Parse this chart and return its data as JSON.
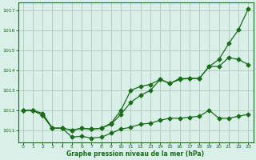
{
  "background_color": "#d8f0e8",
  "grid_color": "#b0c8b8",
  "line_color": "#1a6b1a",
  "xlabel": "Graphe pression niveau de la mer (hPa)",
  "ylim": [
    1010.4,
    1017.4
  ],
  "xlim": [
    -0.5,
    23.5
  ],
  "yticks": [
    1011,
    1012,
    1013,
    1014,
    1015,
    1016,
    1017
  ],
  "xticks": [
    0,
    1,
    2,
    3,
    4,
    5,
    6,
    7,
    8,
    9,
    10,
    11,
    12,
    13,
    14,
    15,
    16,
    17,
    18,
    19,
    20,
    21,
    22,
    23
  ],
  "series1_x": [
    0,
    1,
    2,
    3,
    4,
    5,
    6,
    7,
    8,
    9,
    10,
    11,
    12,
    13,
    14,
    15,
    16,
    17,
    18,
    19,
    20,
    21,
    22,
    23
  ],
  "series1_y": [
    1012.0,
    1012.0,
    1011.85,
    1011.1,
    1011.1,
    1010.65,
    1010.7,
    1010.6,
    1010.65,
    1010.85,
    1011.05,
    1011.15,
    1011.3,
    1011.35,
    1011.5,
    1011.6,
    1011.6,
    1011.65,
    1011.7,
    1012.0,
    1011.6,
    1011.6,
    1011.7,
    1011.8
  ],
  "series2_x": [
    0,
    1,
    2,
    3,
    4,
    5,
    6,
    7,
    8,
    9,
    10,
    11,
    12,
    13,
    14,
    15,
    16,
    17,
    18,
    19,
    20,
    21,
    22,
    23
  ],
  "series2_y": [
    1012.0,
    1012.0,
    1011.75,
    1011.1,
    1011.1,
    1011.0,
    1011.1,
    1011.05,
    1011.1,
    1011.3,
    1011.8,
    1012.4,
    1012.75,
    1013.0,
    1013.55,
    1013.35,
    1013.55,
    1013.6,
    1013.6,
    1014.2,
    1014.2,
    1014.65,
    1014.55,
    1014.3
  ],
  "series3_x": [
    0,
    1,
    2,
    3,
    4,
    5,
    6,
    7,
    8,
    9,
    10,
    11,
    12,
    13,
    14,
    15,
    16,
    17,
    18,
    19,
    20,
    21,
    22,
    23
  ],
  "series3_y": [
    1012.0,
    1012.0,
    1011.75,
    1011.1,
    1011.1,
    1011.0,
    1011.1,
    1011.05,
    1011.1,
    1011.35,
    1012.0,
    1013.0,
    1013.2,
    1013.3,
    1013.55,
    1013.35,
    1013.6,
    1013.6,
    1013.6,
    1014.2,
    1014.55,
    1015.35,
    1016.05,
    1017.1
  ],
  "marker": "D",
  "markersize": 2.5
}
